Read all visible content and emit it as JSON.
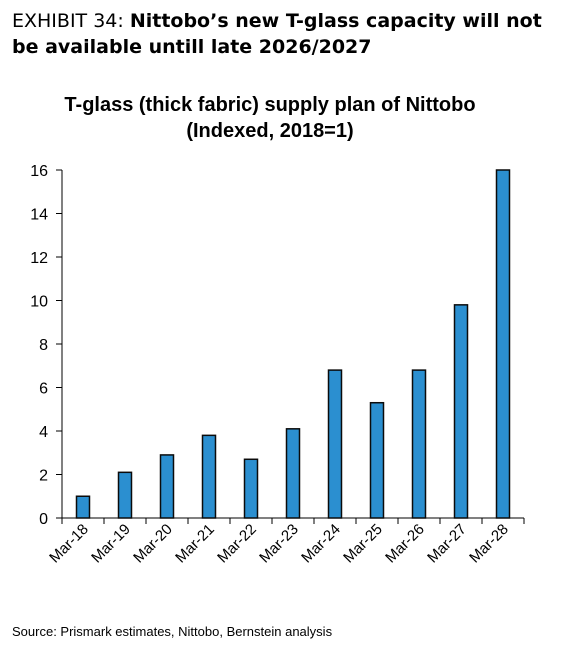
{
  "exhibit": {
    "label": "EXHIBIT 34: ",
    "headline": "Nittobo’s new T-glass capacity will not be available untill late 2026/2027"
  },
  "source": "Source: Prismark estimates, Nittobo, Bernstein analysis",
  "chart_data": {
    "type": "bar",
    "title": "T-glass (thick fabric) supply plan of Nittobo (Indexed, 2018=1)",
    "categories": [
      "Mar-18",
      "Mar-19",
      "Mar-20",
      "Mar-21",
      "Mar-22",
      "Mar-23",
      "Mar-24",
      "Mar-25",
      "Mar-26",
      "Mar-27",
      "Mar-28"
    ],
    "values": [
      1.0,
      2.1,
      2.9,
      3.8,
      2.7,
      4.1,
      6.8,
      5.3,
      6.8,
      9.8,
      16.0
    ],
    "ylim": [
      0,
      16
    ],
    "yticks": [
      0,
      2,
      4,
      6,
      8,
      10,
      12,
      14,
      16
    ],
    "xlabel": "",
    "ylabel": "",
    "grid": false,
    "legend": "none",
    "colors": {
      "bar": "#2b8fd0",
      "bar_edge": "#0b0b0b",
      "axis": "#000000"
    }
  }
}
